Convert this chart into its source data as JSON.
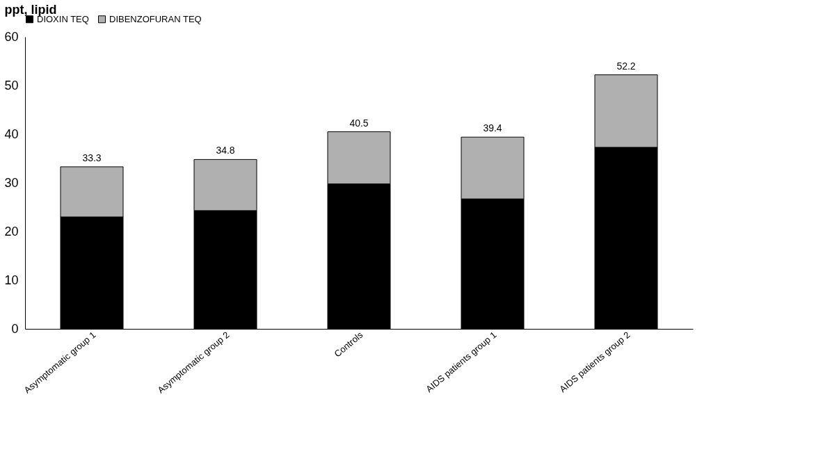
{
  "chart_data": {
    "type": "bar",
    "stacked": true,
    "ylabel": "ppt, lipid",
    "categories": [
      "Asymptomatic group 1",
      "Asymptomatic group 2",
      "Controls",
      "AIDS patients group 1",
      "AIDS patients group 2"
    ],
    "series": [
      {
        "name": "DIOXIN TEQ",
        "color": "#000000",
        "values": [
          23.0,
          24.3,
          29.8,
          26.7,
          37.3
        ]
      },
      {
        "name": "DIBENZOFURAN TEQ",
        "color": "#b0b0b0",
        "values": [
          10.3,
          10.5,
          10.7,
          12.7,
          14.9
        ]
      }
    ],
    "totals": [
      "33.3",
      "34.8",
      "40.5",
      "39.4",
      "52.2"
    ],
    "ylim": [
      0,
      60
    ],
    "yticks": [
      0,
      10,
      20,
      30,
      40,
      50,
      60
    ],
    "grid": false,
    "legend": "top"
  }
}
